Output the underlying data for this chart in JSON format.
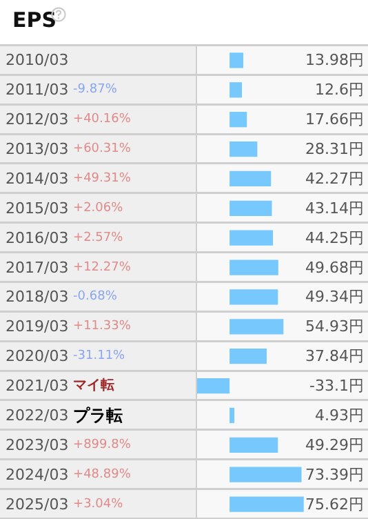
{
  "chart_data": {
    "type": "bar",
    "orientation": "horizontal",
    "title": "EPS",
    "categories": [
      "2010/03",
      "2011/03 -9.87%",
      "2012/03 +40.16%",
      "2013/03 +60.31%",
      "2014/03 +49.31%",
      "2015/03 +2.06%",
      "2016/03 +2.57%",
      "2017/03 +12.27%",
      "2018/03 -0.68%",
      "2019/03 +11.33%",
      "2020/03 -31.11%",
      "2021/03 マイ転",
      "2022/03 プラ転",
      "2023/03 +899.8%",
      "2024/03 +48.89%",
      "2025/03 +3.04%"
    ],
    "values": [
      13.98,
      12.6,
      17.66,
      28.31,
      42.27,
      43.14,
      44.25,
      49.68,
      49.34,
      54.93,
      37.84,
      -33.1,
      4.93,
      49.29,
      73.39,
      75.62
    ],
    "value_labels": [
      "13.98円",
      "12.6円",
      "17.66円",
      "28.31円",
      "42.27円",
      "43.14円",
      "44.25円",
      "49.68円",
      "49.34円",
      "54.93円",
      "37.84円",
      "-33.1円",
      "4.93円",
      "49.29円",
      "73.39円",
      "75.62円"
    ],
    "color": "#77c8fd"
  }
}
